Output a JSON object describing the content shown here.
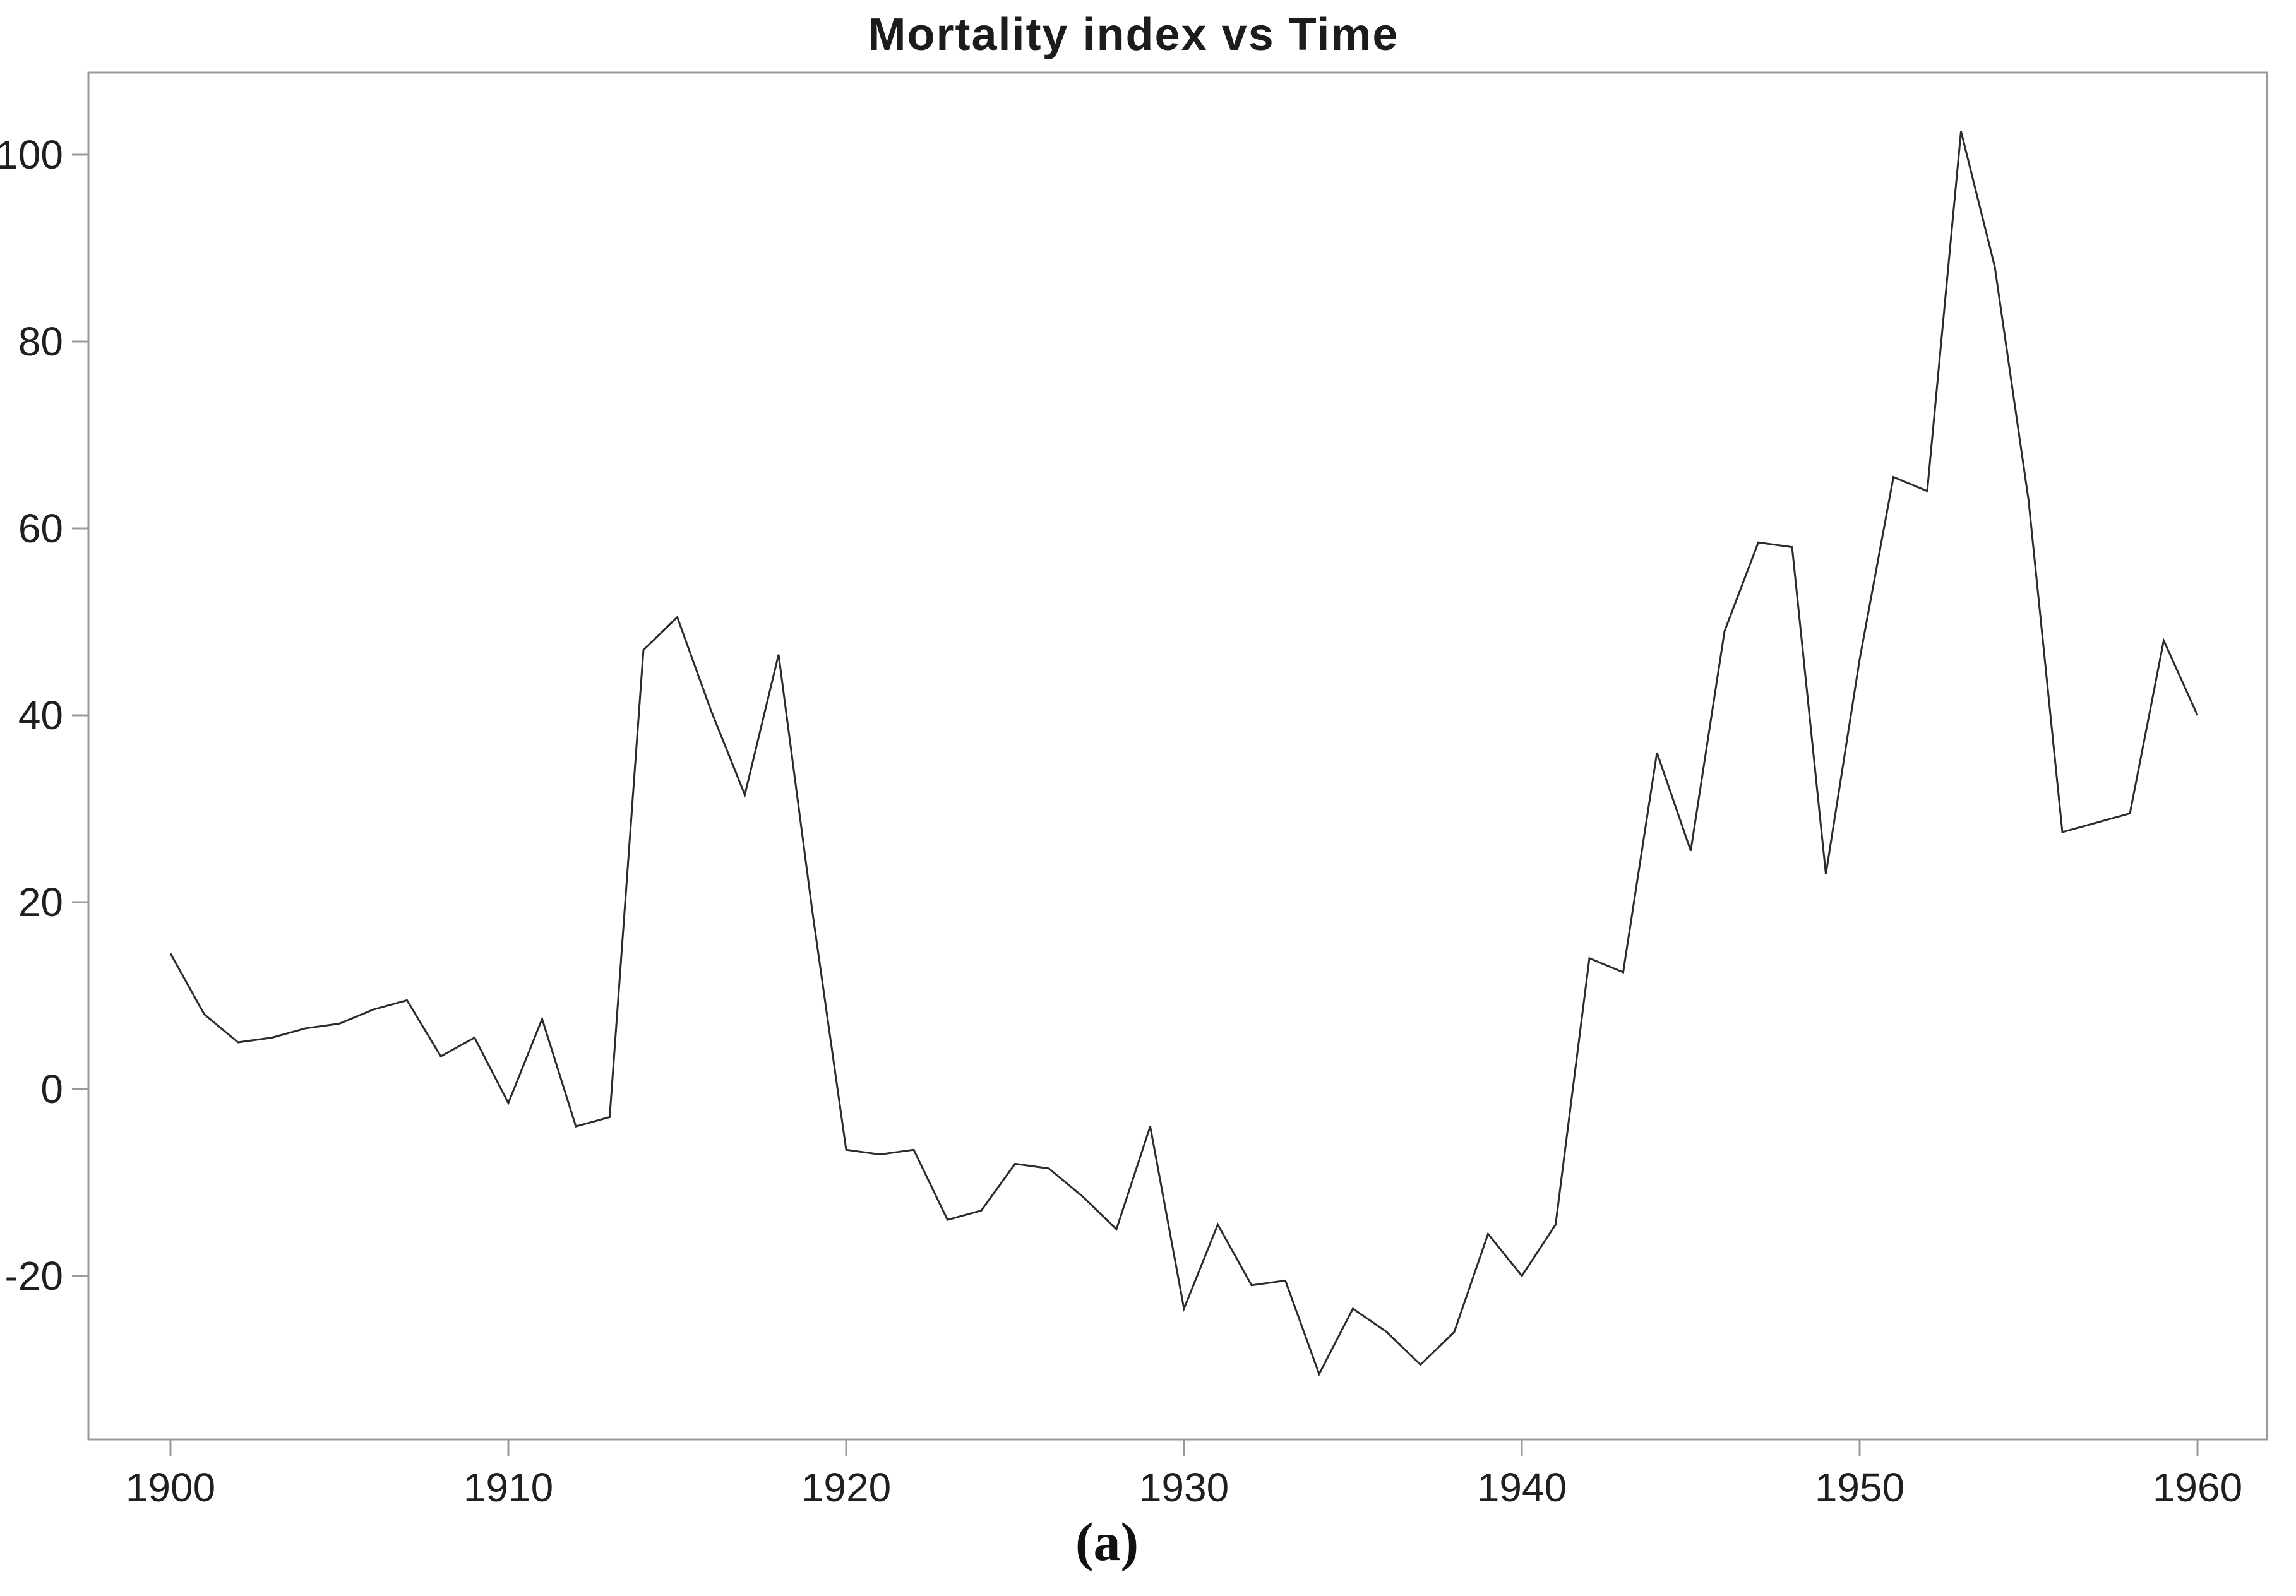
{
  "title": "Mortality index vs Time",
  "caption": "(a)",
  "colors": {
    "line": "#2b2b2b",
    "axis": "#9a9a9a",
    "tick_label": "#1f1f1f",
    "background": "#ffffff"
  },
  "chart_data": {
    "type": "line",
    "title": "Mortality index vs Time",
    "xlabel": "",
    "ylabel": "",
    "grid": false,
    "legend": "none",
    "x_ticks": [
      1900,
      1910,
      1920,
      1930,
      1940,
      1950,
      1960
    ],
    "y_ticks": [
      100,
      80,
      60,
      40,
      20,
      0,
      -20
    ],
    "xlim": [
      1897.6,
      1962.1
    ],
    "ylim": [
      -37.5,
      108.8
    ],
    "x": [
      1900,
      1901,
      1902,
      1903,
      1904,
      1905,
      1906,
      1907,
      1908,
      1909,
      1910,
      1911,
      1912,
      1913,
      1914,
      1915,
      1916,
      1917,
      1918,
      1919,
      1920,
      1921,
      1922,
      1923,
      1924,
      1925,
      1926,
      1927,
      1928,
      1929,
      1930,
      1931,
      1932,
      1933,
      1934,
      1935,
      1936,
      1937,
      1938,
      1939,
      1940,
      1941,
      1942,
      1943,
      1944,
      1945,
      1946,
      1947,
      1948,
      1949,
      1950,
      1951,
      1952,
      1953,
      1954,
      1955,
      1956,
      1957,
      1958,
      1959,
      1960
    ],
    "values": [
      14.5,
      8,
      5,
      5.5,
      6.5,
      7,
      8.5,
      9.5,
      3.5,
      5.5,
      -1.5,
      7.5,
      -4,
      -3,
      47,
      50.5,
      40.5,
      31.5,
      46.5,
      19,
      -6.5,
      -7,
      -6.5,
      -14,
      -13,
      -8,
      -8.5,
      -11.5,
      -15,
      -4,
      -23.5,
      -14.5,
      -21,
      -20.5,
      -30.5,
      -23.5,
      -26,
      -29.5,
      -26,
      -15.5,
      -20,
      -14.5,
      14,
      12.5,
      36,
      25.5,
      49,
      58.5,
      58,
      23,
      46,
      65.5,
      64,
      102.5,
      88,
      63,
      27.5,
      28.5,
      29.5,
      48,
      40
    ]
  }
}
